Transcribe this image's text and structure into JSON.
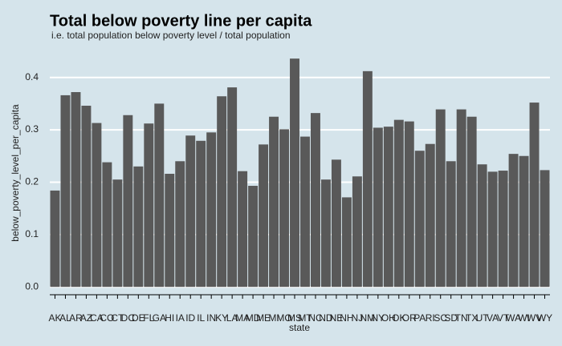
{
  "chart_data": {
    "type": "bar",
    "title": "Total below poverty line per capita",
    "subtitle": "i.e. total population below poverty level / total population",
    "x_label": "state",
    "y_label": "below_poverty_level_per_capita",
    "categories": [
      "AK",
      "AL",
      "AR",
      "AZ",
      "CA",
      "CO",
      "CT",
      "DC",
      "DE",
      "FL",
      "GA",
      "HI",
      "IA",
      "ID",
      "IL",
      "IN",
      "KY",
      "LA",
      "MA",
      "MD",
      "ME",
      "MI",
      "MO",
      "MS",
      "MT",
      "NC",
      "ND",
      "NE",
      "NH",
      "NJ",
      "NM",
      "NY",
      "OH",
      "OK",
      "OR",
      "PA",
      "RI",
      "SC",
      "SD",
      "TN",
      "TX",
      "UT",
      "VA",
      "VT",
      "WA",
      "WI",
      "WV",
      "WY"
    ],
    "values": [
      0.184,
      0.366,
      0.372,
      0.346,
      0.313,
      0.238,
      0.205,
      0.328,
      0.23,
      0.312,
      0.35,
      0.216,
      0.24,
      0.289,
      0.279,
      0.295,
      0.364,
      0.381,
      0.221,
      0.193,
      0.272,
      0.325,
      0.301,
      0.436,
      0.287,
      0.332,
      0.205,
      0.243,
      0.171,
      0.211,
      0.412,
      0.304,
      0.306,
      0.319,
      0.316,
      0.26,
      0.273,
      0.339,
      0.24,
      0.339,
      0.325,
      0.234,
      0.22,
      0.222,
      0.254,
      0.25,
      0.352,
      0.223
    ],
    "color": "#595959",
    "ylim": [
      -0.015,
      0.45
    ],
    "yticks": [
      {
        "value": 0,
        "label": "0.0"
      },
      0.1,
      0.2,
      0.3,
      0.4
    ],
    "grid": true
  }
}
